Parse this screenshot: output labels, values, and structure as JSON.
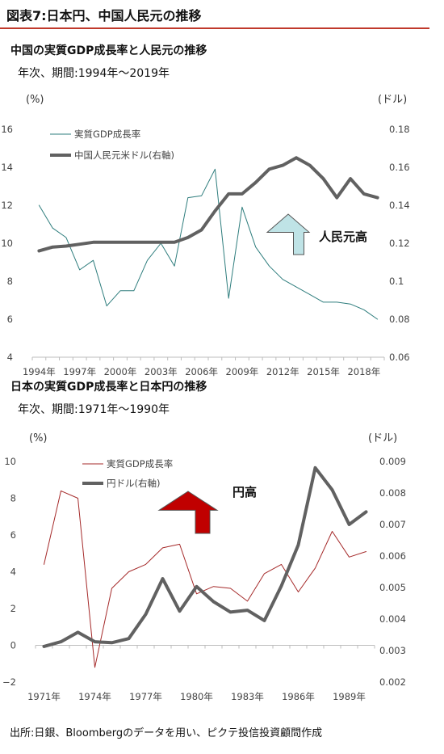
{
  "figure_title": "図表7:日本円、中国人民元の推移",
  "source_note": "出所:日銀、Bloombergのデータを用い、ピクテ投信投資顧問作成",
  "chart_data": [
    {
      "type": "line",
      "title": "中国の実質GDP成長率と人民元の推移",
      "subtitle": "年次、期間:1994年〜2019年",
      "ylabel_left": "(%)",
      "ylabel_right": "(ドル)",
      "x": [
        1994,
        1995,
        1996,
        1997,
        1998,
        1999,
        2000,
        2001,
        2002,
        2003,
        2004,
        2005,
        2006,
        2007,
        2008,
        2009,
        2010,
        2011,
        2012,
        2013,
        2014,
        2015,
        2016,
        2017,
        2018,
        2019
      ],
      "x_tick_labels": [
        "1994年",
        "1997年",
        "2000年",
        "2003年",
        "2006年",
        "2009年",
        "2012年",
        "2015年",
        "2018年"
      ],
      "x_tick_years": [
        1994,
        1997,
        2000,
        2003,
        2006,
        2009,
        2012,
        2015,
        2018
      ],
      "ylim_left": [
        4,
        16
      ],
      "yticks_left": [
        "4",
        "6",
        "8",
        "10",
        "12",
        "14",
        "16"
      ],
      "ylim_right": [
        0.06,
        0.18
      ],
      "yticks_right": [
        "0.06",
        "0.08",
        "0.1",
        "0.12",
        "0.14",
        "0.16",
        "0.18"
      ],
      "series": [
        {
          "name": "実質GDP成長率",
          "axis": "left",
          "color": "#2e7d7d",
          "width": 1,
          "values": [
            12.0,
            10.8,
            10.3,
            8.6,
            9.1,
            6.7,
            7.5,
            7.5,
            9.1,
            10.0,
            8.8,
            12.4,
            12.5,
            13.9,
            7.1,
            11.9,
            9.8,
            8.8,
            8.1,
            7.7,
            7.3,
            6.9,
            6.9,
            6.8,
            6.5,
            6.0
          ]
        },
        {
          "name": "中国人民元米ドル(右軸)",
          "axis": "right",
          "color": "#616161",
          "width": 4,
          "values": [
            0.116,
            0.118,
            0.1185,
            0.1195,
            0.1205,
            0.1205,
            0.1205,
            0.1205,
            0.1205,
            0.1205,
            0.1205,
            0.123,
            0.127,
            0.137,
            0.146,
            0.146,
            0.152,
            0.159,
            0.161,
            0.165,
            0.161,
            0.154,
            0.144,
            0.154,
            0.146,
            0.144
          ]
        }
      ],
      "annotation": "人民元高",
      "arrow_color": "#bfe3e6"
    },
    {
      "type": "line",
      "title": "日本の実質GDP成長率と日本円の推移",
      "subtitle": "年次、期間:1971年〜1990年",
      "ylabel_left": "(%)",
      "ylabel_right": "(ドル)",
      "x": [
        1971,
        1972,
        1973,
        1974,
        1975,
        1976,
        1977,
        1978,
        1979,
        1980,
        1981,
        1982,
        1983,
        1984,
        1985,
        1986,
        1987,
        1988,
        1989,
        1990
      ],
      "x_tick_labels": [
        "1971年",
        "1974年",
        "1977年",
        "1980年",
        "1983年",
        "1986年",
        "1989年"
      ],
      "x_tick_years": [
        1971,
        1974,
        1977,
        1980,
        1983,
        1986,
        1989
      ],
      "ylim_left": [
        -2,
        10
      ],
      "yticks_left": [
        "−2",
        "0",
        "2",
        "4",
        "6",
        "8",
        "10"
      ],
      "ylim_right": [
        0.002,
        0.009
      ],
      "yticks_right": [
        "0.002",
        "0.003",
        "0.004",
        "0.005",
        "0.006",
        "0.007",
        "0.008",
        "0.009"
      ],
      "series": [
        {
          "name": "実質GDP成長率",
          "axis": "left",
          "color": "#a52a2a",
          "width": 1,
          "values": [
            4.4,
            8.4,
            8.0,
            -1.2,
            3.1,
            4.0,
            4.4,
            5.3,
            5.5,
            2.8,
            3.2,
            3.1,
            2.4,
            3.9,
            4.4,
            2.9,
            4.2,
            6.2,
            4.8,
            5.1
          ]
        },
        {
          "name": "円ドル(右軸)",
          "axis": "right",
          "color": "#616161",
          "width": 4,
          "values": [
            0.00313,
            0.00328,
            0.00358,
            0.00328,
            0.00325,
            0.00338,
            0.00415,
            0.00528,
            0.00425,
            0.00503,
            0.00455,
            0.00422,
            0.00428,
            0.00395,
            0.00505,
            0.00635,
            0.0088,
            0.0081,
            0.007,
            0.0074
          ]
        }
      ],
      "annotation": "円高",
      "arrow_color": "#c00000"
    }
  ]
}
